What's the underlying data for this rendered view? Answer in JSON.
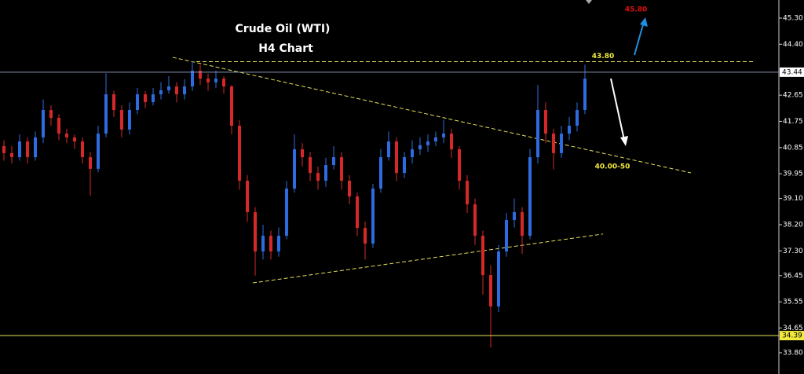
{
  "chart_data": {
    "type": "candlestick",
    "title": "Crude Oil (WTI)",
    "subtitle": "H4 Chart",
    "ylim": [
      33.07,
      45.92
    ],
    "yticks": [
      {
        "value": 45.3,
        "label": "45.30"
      },
      {
        "value": 44.4,
        "label": "44.40"
      },
      {
        "value": 42.65,
        "label": "42.65"
      },
      {
        "value": 41.75,
        "label": "41.75"
      },
      {
        "value": 40.85,
        "label": "40.85"
      },
      {
        "value": 39.95,
        "label": "39.95"
      },
      {
        "value": 39.1,
        "label": "39.10"
      },
      {
        "value": 38.2,
        "label": "38.20"
      },
      {
        "value": 37.3,
        "label": "37.30"
      },
      {
        "value": 36.45,
        "label": "36.45"
      },
      {
        "value": 35.55,
        "label": "35.55"
      },
      {
        "value": 34.65,
        "label": "34.65"
      },
      {
        "value": 33.8,
        "label": "33.80"
      }
    ],
    "up_color": "#2f6be0",
    "down_color": "#d62828",
    "levels": [
      {
        "value": 43.44,
        "label": "43.44",
        "color": "#8a97b8",
        "label_bg": "#ffffff"
      },
      {
        "value": 34.39,
        "label": "34.39",
        "color": "#e8e05a",
        "label_bg": "#f2ea3c"
      }
    ],
    "trendlines": [
      {
        "from": [
          24.5,
          43.8
        ],
        "to": [
          95.5,
          43.8
        ]
      },
      {
        "from": [
          21.5,
          43.95
        ],
        "to": [
          87.5,
          39.98
        ]
      },
      {
        "from": [
          31.7,
          36.2
        ],
        "to": [
          76.3,
          37.88
        ]
      }
    ],
    "annotations": [
      {
        "text": "43.80",
        "value": 43.8,
        "color": "#f2ea3c"
      },
      {
        "text": "45.80",
        "value": 45.8,
        "color": "#e01010"
      },
      {
        "text": "40.00-50",
        "value": 40.0,
        "color": "#f2ea3c"
      }
    ],
    "candles": [
      {
        "open": 40.9,
        "high": 41.1,
        "low": 40.4,
        "close": 40.66
      },
      {
        "open": 40.66,
        "high": 40.9,
        "low": 40.3,
        "close": 40.52
      },
      {
        "open": 40.52,
        "high": 41.3,
        "low": 40.4,
        "close": 41.06
      },
      {
        "open": 41.06,
        "high": 41.2,
        "low": 40.3,
        "close": 40.52
      },
      {
        "open": 40.52,
        "high": 41.4,
        "low": 40.4,
        "close": 41.2
      },
      {
        "open": 41.2,
        "high": 42.5,
        "low": 41.0,
        "close": 42.14
      },
      {
        "open": 42.14,
        "high": 42.3,
        "low": 41.6,
        "close": 41.87
      },
      {
        "open": 41.87,
        "high": 42.0,
        "low": 41.1,
        "close": 41.33
      },
      {
        "open": 41.33,
        "high": 41.5,
        "low": 41.0,
        "close": 41.2
      },
      {
        "open": 41.2,
        "high": 41.3,
        "low": 40.8,
        "close": 41.06
      },
      {
        "open": 41.06,
        "high": 41.2,
        "low": 40.3,
        "close": 40.52
      },
      {
        "open": 40.52,
        "high": 40.7,
        "low": 39.2,
        "close": 40.12
      },
      {
        "open": 40.12,
        "high": 41.6,
        "low": 40.0,
        "close": 41.33
      },
      {
        "open": 41.33,
        "high": 43.4,
        "low": 41.2,
        "close": 42.68
      },
      {
        "open": 42.68,
        "high": 42.8,
        "low": 41.9,
        "close": 42.14
      },
      {
        "open": 42.14,
        "high": 42.3,
        "low": 41.2,
        "close": 41.47
      },
      {
        "open": 41.47,
        "high": 42.4,
        "low": 41.3,
        "close": 42.14
      },
      {
        "open": 42.14,
        "high": 42.9,
        "low": 42.0,
        "close": 42.68
      },
      {
        "open": 42.68,
        "high": 42.8,
        "low": 42.2,
        "close": 42.41
      },
      {
        "open": 42.41,
        "high": 42.9,
        "low": 42.3,
        "close": 42.68
      },
      {
        "open": 42.68,
        "high": 43.1,
        "low": 42.5,
        "close": 42.82
      },
      {
        "open": 42.82,
        "high": 43.3,
        "low": 42.7,
        "close": 42.95
      },
      {
        "open": 42.95,
        "high": 43.1,
        "low": 42.4,
        "close": 42.68
      },
      {
        "open": 42.68,
        "high": 43.2,
        "low": 42.5,
        "close": 42.95
      },
      {
        "open": 42.95,
        "high": 43.82,
        "low": 42.8,
        "close": 43.49
      },
      {
        "open": 43.49,
        "high": 43.7,
        "low": 43.0,
        "close": 43.22
      },
      {
        "open": 43.22,
        "high": 43.4,
        "low": 42.8,
        "close": 43.09
      },
      {
        "open": 43.09,
        "high": 43.5,
        "low": 42.9,
        "close": 43.22
      },
      {
        "open": 43.22,
        "high": 43.3,
        "low": 42.7,
        "close": 42.95
      },
      {
        "open": 42.95,
        "high": 43.0,
        "low": 41.3,
        "close": 41.6
      },
      {
        "open": 41.6,
        "high": 41.8,
        "low": 39.4,
        "close": 39.71
      },
      {
        "open": 39.71,
        "high": 39.9,
        "low": 38.3,
        "close": 38.63
      },
      {
        "open": 38.63,
        "high": 38.8,
        "low": 36.45,
        "close": 37.28
      },
      {
        "open": 37.28,
        "high": 38.2,
        "low": 37.0,
        "close": 37.82
      },
      {
        "open": 37.82,
        "high": 38.0,
        "low": 37.0,
        "close": 37.28
      },
      {
        "open": 37.28,
        "high": 38.1,
        "low": 37.1,
        "close": 37.82
      },
      {
        "open": 37.82,
        "high": 39.7,
        "low": 37.7,
        "close": 39.44
      },
      {
        "open": 39.44,
        "high": 41.3,
        "low": 39.3,
        "close": 40.79
      },
      {
        "open": 40.79,
        "high": 41.0,
        "low": 40.2,
        "close": 40.52
      },
      {
        "open": 40.52,
        "high": 40.7,
        "low": 39.7,
        "close": 39.98
      },
      {
        "open": 39.98,
        "high": 40.2,
        "low": 39.4,
        "close": 39.71
      },
      {
        "open": 39.71,
        "high": 40.5,
        "low": 39.5,
        "close": 40.25
      },
      {
        "open": 40.25,
        "high": 40.9,
        "low": 40.1,
        "close": 40.52
      },
      {
        "open": 40.52,
        "high": 40.7,
        "low": 39.4,
        "close": 39.71
      },
      {
        "open": 39.71,
        "high": 39.9,
        "low": 38.9,
        "close": 39.17
      },
      {
        "open": 39.17,
        "high": 39.3,
        "low": 37.8,
        "close": 38.09
      },
      {
        "open": 38.09,
        "high": 38.3,
        "low": 37.0,
        "close": 37.55
      },
      {
        "open": 37.55,
        "high": 39.6,
        "low": 37.4,
        "close": 39.44
      },
      {
        "open": 39.44,
        "high": 40.8,
        "low": 39.3,
        "close": 40.52
      },
      {
        "open": 40.52,
        "high": 41.4,
        "low": 40.4,
        "close": 41.06
      },
      {
        "open": 41.06,
        "high": 41.2,
        "low": 39.7,
        "close": 39.98
      },
      {
        "open": 39.98,
        "high": 40.7,
        "low": 39.8,
        "close": 40.52
      },
      {
        "open": 40.52,
        "high": 41.1,
        "low": 40.3,
        "close": 40.79
      },
      {
        "open": 40.79,
        "high": 41.2,
        "low": 40.6,
        "close": 40.93
      },
      {
        "open": 40.93,
        "high": 41.3,
        "low": 40.7,
        "close": 41.06
      },
      {
        "open": 41.06,
        "high": 41.4,
        "low": 40.9,
        "close": 41.2
      },
      {
        "open": 41.2,
        "high": 41.8,
        "low": 41.0,
        "close": 41.33
      },
      {
        "open": 41.33,
        "high": 41.5,
        "low": 40.5,
        "close": 40.79
      },
      {
        "open": 40.79,
        "high": 40.9,
        "low": 39.4,
        "close": 39.71
      },
      {
        "open": 39.71,
        "high": 39.9,
        "low": 38.6,
        "close": 38.9
      },
      {
        "open": 38.9,
        "high": 39.1,
        "low": 37.5,
        "close": 37.82
      },
      {
        "open": 37.82,
        "high": 38.0,
        "low": 35.8,
        "close": 36.47
      },
      {
        "open": 36.47,
        "high": 36.8,
        "low": 33.98,
        "close": 35.39
      },
      {
        "open": 35.39,
        "high": 37.5,
        "low": 35.2,
        "close": 37.28
      },
      {
        "open": 37.28,
        "high": 38.6,
        "low": 37.1,
        "close": 38.36
      },
      {
        "open": 38.36,
        "high": 39.1,
        "low": 38.1,
        "close": 38.63
      },
      {
        "open": 38.63,
        "high": 38.8,
        "low": 37.2,
        "close": 37.82
      },
      {
        "open": 37.82,
        "high": 40.8,
        "low": 37.7,
        "close": 40.52
      },
      {
        "open": 40.52,
        "high": 43.0,
        "low": 40.3,
        "close": 42.14
      },
      {
        "open": 42.14,
        "high": 42.4,
        "low": 41.0,
        "close": 41.33
      },
      {
        "open": 41.33,
        "high": 41.5,
        "low": 40.1,
        "close": 40.66
      },
      {
        "open": 40.66,
        "high": 41.6,
        "low": 40.5,
        "close": 41.33
      },
      {
        "open": 41.33,
        "high": 41.9,
        "low": 41.1,
        "close": 41.6
      },
      {
        "open": 41.6,
        "high": 42.4,
        "low": 41.4,
        "close": 42.14
      },
      {
        "open": 42.14,
        "high": 43.7,
        "low": 42.0,
        "close": 43.22
      }
    ]
  }
}
